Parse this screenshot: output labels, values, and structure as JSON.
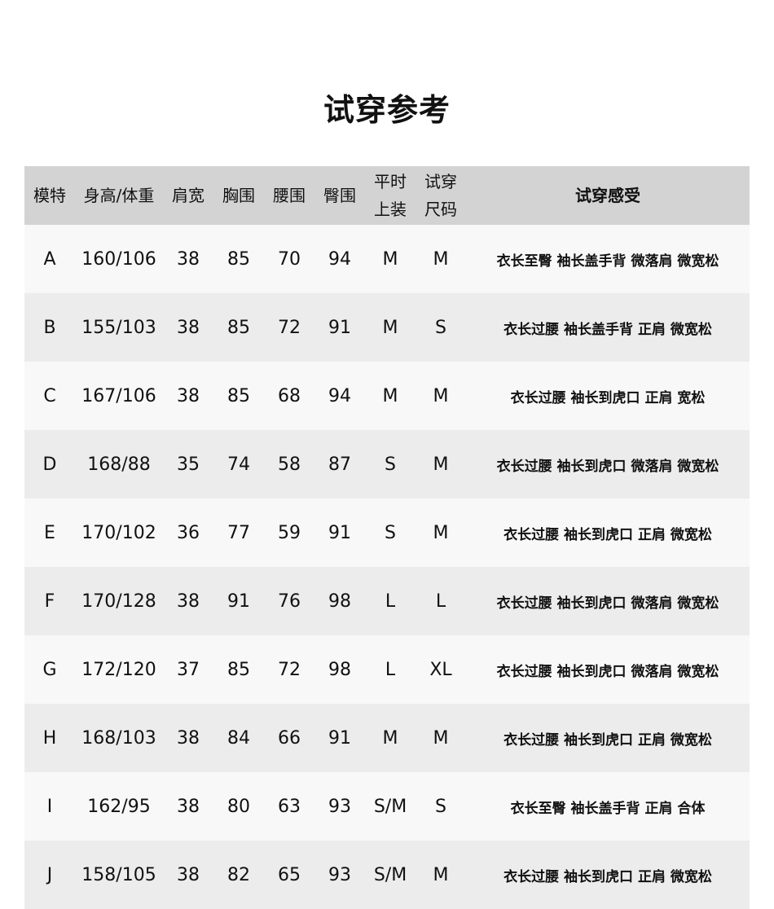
{
  "title": "试穿参考",
  "headers": [
    "模特",
    "身高/体重",
    "肩宽",
    "胸围",
    "腰围",
    "臀围",
    "平时上装",
    "试穿尺码",
    "试穿感受"
  ],
  "header_lines": {
    "usual_top": [
      "平时",
      "上装"
    ],
    "tried_size": [
      "试穿",
      "尺码"
    ]
  },
  "rows": [
    [
      "A",
      "160/106",
      "38",
      "85",
      "70",
      "94",
      "M",
      "M",
      "衣长至臀 袖长盖手背 微落肩 微宽松"
    ],
    [
      "B",
      "155/103",
      "38",
      "85",
      "72",
      "91",
      "M",
      "S",
      "衣长过腰 袖长盖手背 正肩 微宽松"
    ],
    [
      "C",
      "167/106",
      "38",
      "85",
      "68",
      "94",
      "M",
      "M",
      "衣长过腰 袖长到虎口 正肩 宽松"
    ],
    [
      "D",
      "168/88",
      "35",
      "74",
      "58",
      "87",
      "S",
      "M",
      "衣长过腰 袖长到虎口 微落肩 微宽松"
    ],
    [
      "E",
      "170/102",
      "36",
      "77",
      "59",
      "91",
      "S",
      "M",
      "衣长过腰 袖长到虎口 正肩 微宽松"
    ],
    [
      "F",
      "170/128",
      "38",
      "91",
      "76",
      "98",
      "L",
      "L",
      "衣长过腰 袖长到虎口 微落肩 微宽松"
    ],
    [
      "G",
      "172/120",
      "37",
      "85",
      "72",
      "98",
      "L",
      "XL",
      "衣长过腰 袖长到虎口 微落肩 微宽松"
    ],
    [
      "H",
      "168/103",
      "38",
      "84",
      "66",
      "91",
      "M",
      "M",
      "衣长过腰 袖长到虎口 正肩 微宽松"
    ],
    [
      "I",
      "162/95",
      "38",
      "80",
      "63",
      "93",
      "S/M",
      "S",
      "衣长至臀 袖长盖手背 正肩 合体"
    ],
    [
      "J",
      "158/105",
      "38",
      "82",
      "65",
      "93",
      "S/M",
      "M",
      "衣长过腰 袖长到虎口 正肩 微宽松"
    ]
  ],
  "colors": {
    "header_bg": "#d3d3d3",
    "row_light": "#f8f8f8",
    "row_dark": "#ececec"
  }
}
